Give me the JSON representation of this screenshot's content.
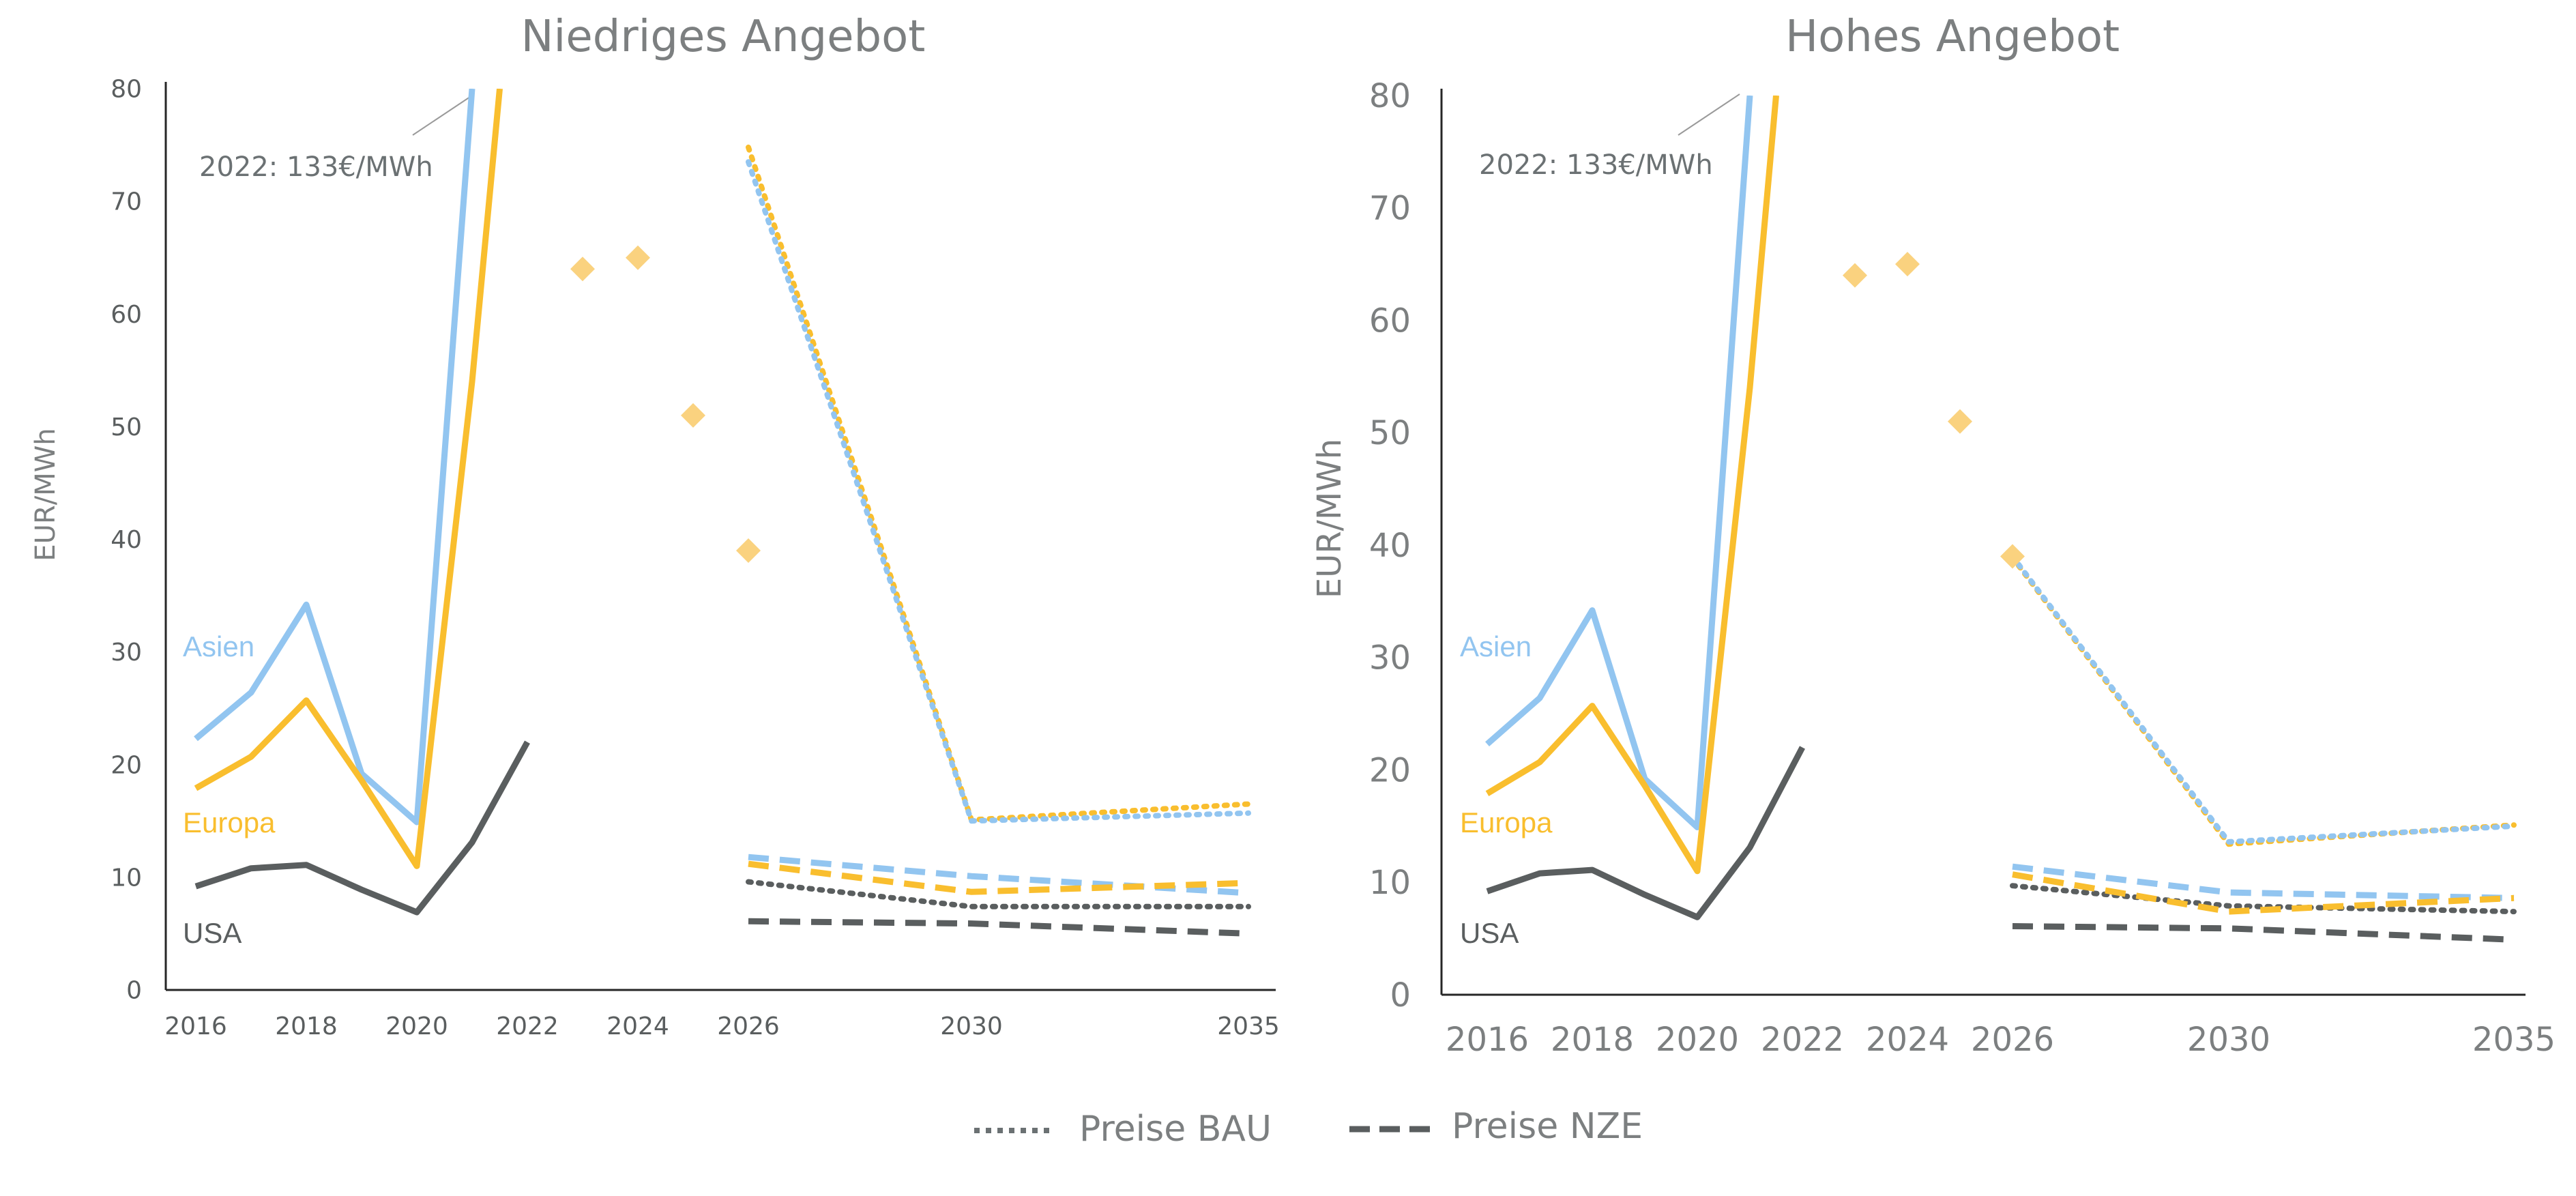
{
  "chart_data": [
    {
      "type": "line",
      "title": "Niedriges Angebot",
      "ylabel": "EUR/MWh",
      "ylim": [
        0,
        80
      ],
      "yticks": [
        0,
        10,
        20,
        30,
        40,
        50,
        60,
        70,
        80
      ],
      "xticks": [
        "2016",
        "2018",
        "2020",
        "2022",
        "2024",
        "2026",
        "2030",
        "2035"
      ],
      "annotation": "2022: 133€/MWh",
      "labels": [
        {
          "text": "Asien",
          "series": "asia_hist"
        },
        {
          "text": "Europa",
          "series": "europe_hist"
        },
        {
          "text": "USA",
          "series": "usa_hist"
        }
      ],
      "series": [
        {
          "key": "asia_hist",
          "color": "#92C5F0",
          "dash": "solid",
          "points": [
            [
              2016,
              22.3
            ],
            [
              2017,
              26.4
            ],
            [
              2018,
              34.2
            ],
            [
              2019,
              19.2
            ],
            [
              2020,
              14.9
            ],
            [
              2021,
              80
            ]
          ]
        },
        {
          "key": "europe_hist",
          "color": "#F9BE2E",
          "dash": "solid",
          "points": [
            [
              2016,
              17.9
            ],
            [
              2017,
              20.7
            ],
            [
              2018,
              25.7
            ],
            [
              2019,
              18.6
            ],
            [
              2020,
              11.0
            ],
            [
              2021,
              54.0
            ],
            [
              2021.5,
              80
            ]
          ]
        },
        {
          "key": "usa_hist",
          "color": "#5A5E5F",
          "dash": "solid",
          "points": [
            [
              2016,
              9.2
            ],
            [
              2017,
              10.8
            ],
            [
              2018,
              11.1
            ],
            [
              2019,
              8.9
            ],
            [
              2020,
              6.9
            ],
            [
              2021,
              13.1
            ],
            [
              2022,
              22.0
            ]
          ]
        },
        {
          "key": "europe_bau",
          "color": "#F9BE2E",
          "dash": "dot",
          "points": [
            [
              2026,
              74.8
            ],
            [
              2030,
              15.1
            ],
            [
              2035,
              16.5
            ]
          ]
        },
        {
          "key": "asia_bau",
          "color": "#92C5F0",
          "dash": "dot",
          "points": [
            [
              2026,
              73.5
            ],
            [
              2030,
              15.0
            ],
            [
              2035,
              15.7
            ]
          ]
        },
        {
          "key": "usa_bau",
          "color": "#5A5E5F",
          "dash": "dot",
          "points": [
            [
              2026,
              9.6
            ],
            [
              2030,
              7.4
            ],
            [
              2035,
              7.4
            ]
          ]
        },
        {
          "key": "asia_nze",
          "color": "#92C5F0",
          "dash": "dash",
          "points": [
            [
              2026,
              11.8
            ],
            [
              2030,
              10.1
            ],
            [
              2035,
              8.6
            ]
          ]
        },
        {
          "key": "europe_nze",
          "color": "#F9BE2E",
          "dash": "dash",
          "points": [
            [
              2026,
              11.2
            ],
            [
              2030,
              8.7
            ],
            [
              2035,
              9.5
            ]
          ]
        },
        {
          "key": "usa_nze",
          "color": "#5A5E5F",
          "dash": "dash",
          "points": [
            [
              2026,
              6.1
            ],
            [
              2030,
              5.9
            ],
            [
              2035,
              5.0
            ]
          ]
        }
      ],
      "markers": {
        "color": "#FAD27F",
        "points": [
          [
            2023,
            64
          ],
          [
            2024,
            65
          ],
          [
            2025,
            51
          ],
          [
            2026,
            39
          ]
        ]
      }
    },
    {
      "type": "line",
      "title": "Hohes Angebot",
      "ylabel": "EUR/MWh",
      "ylim": [
        0,
        80
      ],
      "yticks": [
        0,
        10,
        20,
        30,
        40,
        50,
        60,
        70,
        80
      ],
      "xticks": [
        "2016",
        "2018",
        "2020",
        "2022",
        "2024",
        "2026",
        "2030",
        "2035"
      ],
      "annotation": "2022: 133€/MWh",
      "labels": [
        {
          "text": "Asien",
          "series": "asia_hist"
        },
        {
          "text": "Europa",
          "series": "europe_hist"
        },
        {
          "text": "USA",
          "series": "usa_hist"
        }
      ],
      "series": [
        {
          "key": "asia_hist",
          "color": "#92C5F0",
          "dash": "solid",
          "points": [
            [
              2016,
              22.3
            ],
            [
              2017,
              26.4
            ],
            [
              2018,
              34.2
            ],
            [
              2019,
              19.2
            ],
            [
              2020,
              14.9
            ],
            [
              2021,
              80
            ]
          ]
        },
        {
          "key": "europe_hist",
          "color": "#F9BE2E",
          "dash": "solid",
          "points": [
            [
              2016,
              17.9
            ],
            [
              2017,
              20.7
            ],
            [
              2018,
              25.7
            ],
            [
              2019,
              18.6
            ],
            [
              2020,
              11.0
            ],
            [
              2021,
              54.0
            ],
            [
              2021.5,
              80
            ]
          ]
        },
        {
          "key": "usa_hist",
          "color": "#5A5E5F",
          "dash": "solid",
          "points": [
            [
              2016,
              9.2
            ],
            [
              2017,
              10.8
            ],
            [
              2018,
              11.1
            ],
            [
              2019,
              8.9
            ],
            [
              2020,
              6.9
            ],
            [
              2021,
              13.1
            ],
            [
              2022,
              22.0
            ]
          ]
        },
        {
          "key": "europe_bau",
          "color": "#F9BE2E",
          "dash": "dot",
          "points": [
            [
              2026,
              38.9
            ],
            [
              2030,
              13.4
            ],
            [
              2035,
              15.1
            ]
          ]
        },
        {
          "key": "asia_bau",
          "color": "#92C5F0",
          "dash": "dot",
          "points": [
            [
              2026,
              39.0
            ],
            [
              2030,
              13.6
            ],
            [
              2035,
              15.0
            ]
          ]
        },
        {
          "key": "usa_bau",
          "color": "#5A5E5F",
          "dash": "dot",
          "points": [
            [
              2026,
              9.7
            ],
            [
              2030,
              7.9
            ],
            [
              2035,
              7.4
            ]
          ]
        },
        {
          "key": "asia_nze",
          "color": "#92C5F0",
          "dash": "dash",
          "points": [
            [
              2026,
              11.4
            ],
            [
              2030,
              9.1
            ],
            [
              2035,
              8.6
            ]
          ]
        },
        {
          "key": "europe_nze",
          "color": "#F9BE2E",
          "dash": "dash",
          "points": [
            [
              2026,
              10.7
            ],
            [
              2030,
              7.4
            ],
            [
              2035,
              8.6
            ]
          ]
        },
        {
          "key": "usa_nze",
          "color": "#5A5E5F",
          "dash": "dash",
          "points": [
            [
              2026,
              6.1
            ],
            [
              2030,
              5.9
            ],
            [
              2035,
              4.9
            ]
          ]
        }
      ],
      "markers": {
        "color": "#FAD27F",
        "points": [
          [
            2023,
            64
          ],
          [
            2024,
            65
          ],
          [
            2025,
            51
          ],
          [
            2026,
            39
          ]
        ]
      }
    }
  ],
  "legend": [
    {
      "label": "Preise BAU",
      "dash": "dot",
      "color": "#6B7173"
    },
    {
      "label": "Preise NZE",
      "dash": "dash",
      "color": "#5A5E5F"
    }
  ]
}
